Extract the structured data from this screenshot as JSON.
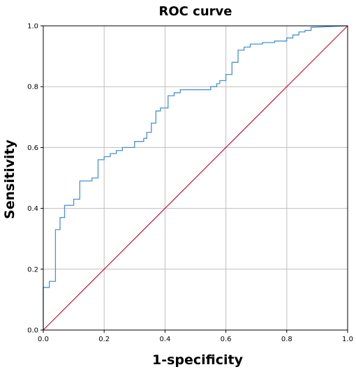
{
  "colors": {
    "roc_line": "#4a90d9",
    "reference_line": "#d0103a",
    "grid": "#bdbdbd",
    "plot_border": "#000000"
  },
  "chart_data": {
    "type": "line",
    "title": "ROC curve",
    "xlabel": "1-specificity",
    "ylabel": "Sensitivity",
    "xlim": [
      0.0,
      1.0
    ],
    "ylim": [
      0.0,
      1.0
    ],
    "grid": true,
    "x_ticks": [
      "0.0",
      "0.2",
      "0.4",
      "0.6",
      "0.8",
      "1.0"
    ],
    "y_ticks": [
      "0.0",
      "0.2",
      "0.4",
      "0.6",
      "0.8",
      "1.0"
    ],
    "series": [
      {
        "kind": "step",
        "x": [
          0.0,
          0.0,
          0.02,
          0.02,
          0.04,
          0.04,
          0.055,
          0.055,
          0.07,
          0.07,
          0.1,
          0.1,
          0.12,
          0.12,
          0.16,
          0.16,
          0.18,
          0.18,
          0.2,
          0.2,
          0.22,
          0.22,
          0.24,
          0.24,
          0.26,
          0.26,
          0.3,
          0.3,
          0.33,
          0.33,
          0.34,
          0.34,
          0.355,
          0.355,
          0.37,
          0.37,
          0.385,
          0.385,
          0.41,
          0.41,
          0.43,
          0.43,
          0.45,
          0.45,
          0.55,
          0.55,
          0.57,
          0.57,
          0.58,
          0.58,
          0.6,
          0.6,
          0.62,
          0.62,
          0.64,
          0.64,
          0.66,
          0.66,
          0.68,
          0.68,
          0.72,
          0.72,
          0.76,
          0.76,
          0.8,
          0.8,
          0.82,
          0.82,
          0.84,
          0.84,
          0.86,
          0.86,
          0.88,
          0.88,
          1.0
        ],
        "y": [
          0.0,
          0.14,
          0.14,
          0.16,
          0.16,
          0.33,
          0.33,
          0.37,
          0.37,
          0.41,
          0.41,
          0.43,
          0.43,
          0.49,
          0.49,
          0.5,
          0.5,
          0.56,
          0.56,
          0.57,
          0.57,
          0.58,
          0.58,
          0.59,
          0.59,
          0.6,
          0.6,
          0.62,
          0.62,
          0.63,
          0.63,
          0.65,
          0.65,
          0.68,
          0.68,
          0.72,
          0.72,
          0.73,
          0.73,
          0.77,
          0.77,
          0.78,
          0.78,
          0.79,
          0.79,
          0.8,
          0.8,
          0.81,
          0.81,
          0.82,
          0.82,
          0.84,
          0.84,
          0.88,
          0.88,
          0.92,
          0.92,
          0.93,
          0.93,
          0.94,
          0.94,
          0.945,
          0.945,
          0.95,
          0.95,
          0.96,
          0.96,
          0.97,
          0.97,
          0.98,
          0.98,
          0.985,
          0.985,
          0.995,
          1.0
        ]
      },
      {
        "kind": "reference",
        "x": [
          0.0,
          1.0
        ],
        "y": [
          0.0,
          1.0
        ]
      }
    ]
  }
}
